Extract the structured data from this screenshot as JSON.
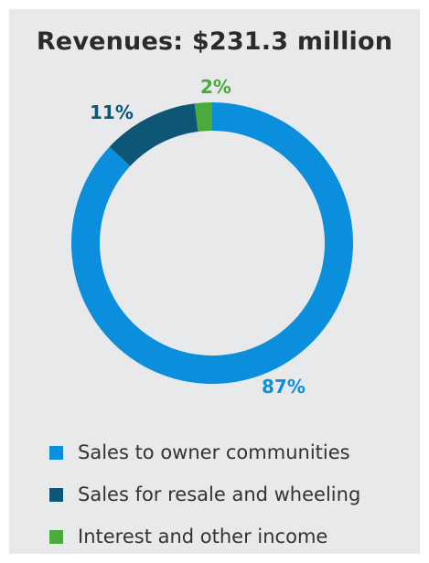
{
  "chart_data": {
    "type": "pie",
    "style": "donut",
    "title": "Revenues: $231.3 million",
    "series": [
      {
        "name": "Sales to owner communities",
        "value": 87,
        "label": "87%",
        "color": "#0b8edb"
      },
      {
        "name": "Sales for resale and wheeling",
        "value": 11,
        "label": "11%",
        "color": "#0d5676"
      },
      {
        "name": "Interest and other income",
        "value": 2,
        "label": "2%",
        "color": "#4aab3c"
      }
    ],
    "legend_position": "bottom"
  }
}
